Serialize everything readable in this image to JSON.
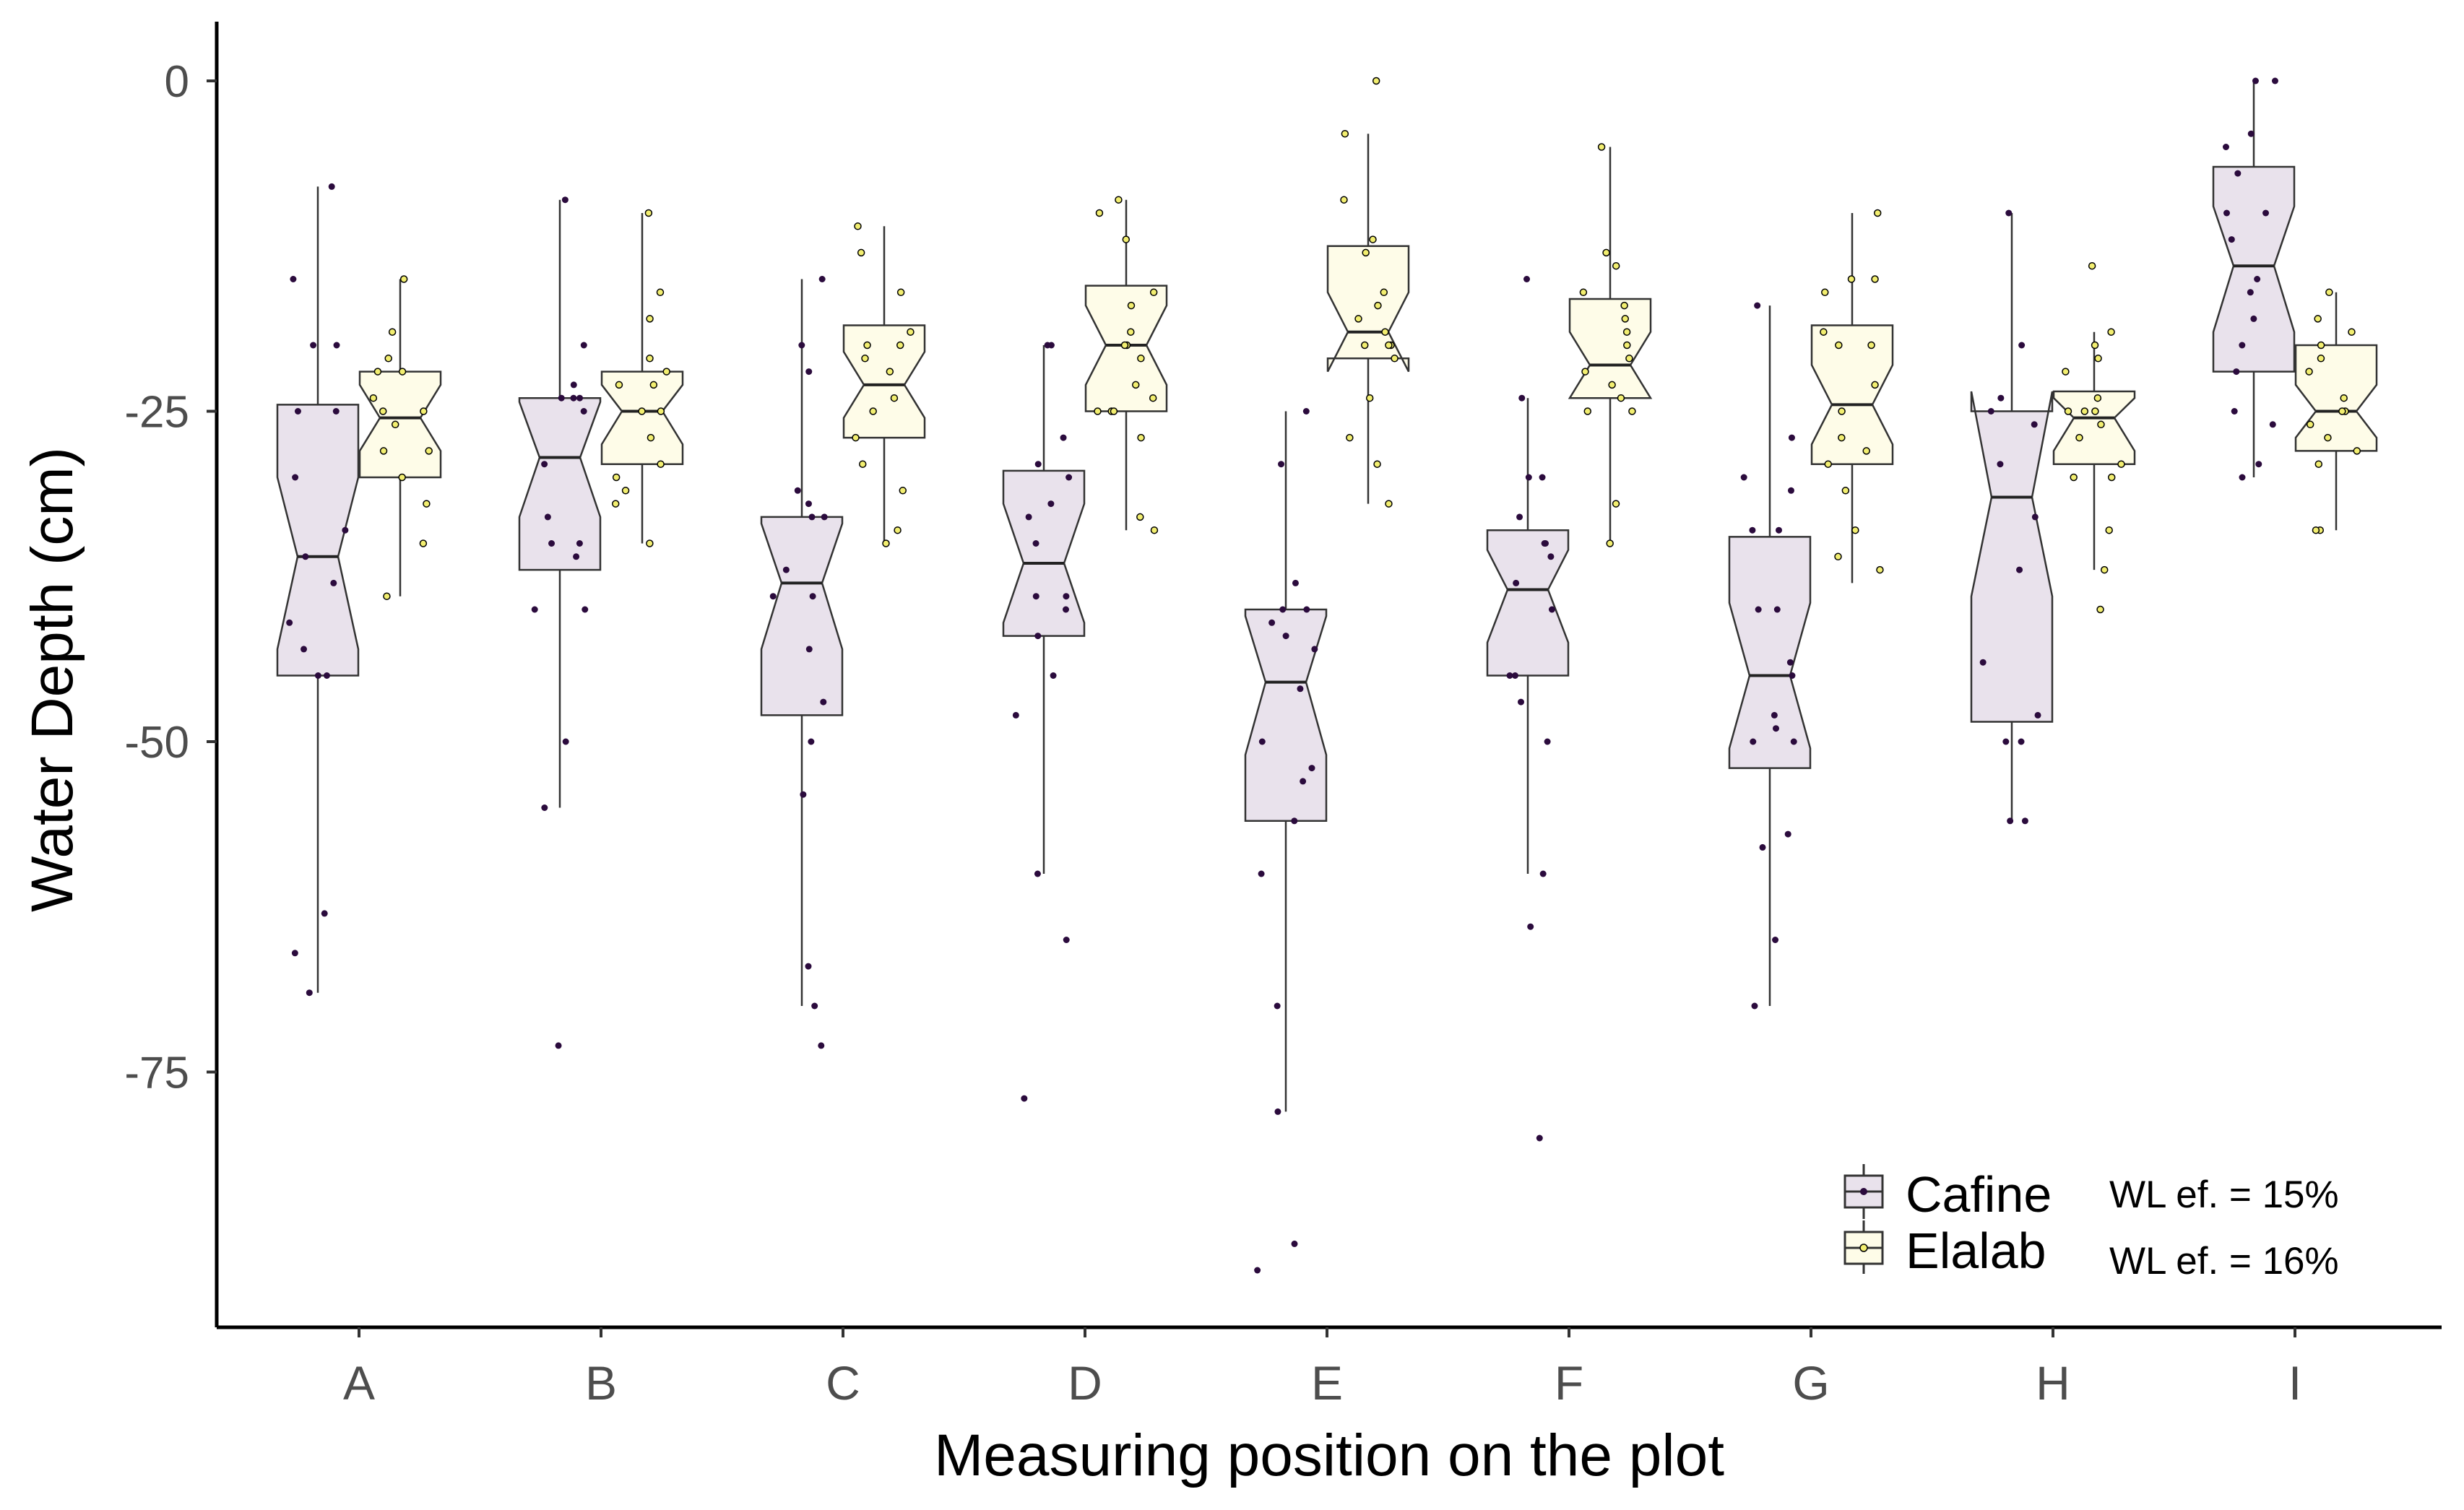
{
  "chart_data": {
    "type": "boxplot",
    "title": "",
    "xlabel": "Measuring position on the plot",
    "ylabel": "Water Depth (cm)",
    "ylim": [
      -95,
      4
    ],
    "yticks": [
      0,
      -25,
      -50,
      -75
    ],
    "ytick_labels": [
      "0",
      "-25",
      "-50",
      "-75"
    ],
    "categories": [
      "A",
      "B",
      "C",
      "D",
      "E",
      "F",
      "G",
      "H",
      "I"
    ],
    "notched": true,
    "legend": {
      "position": "bottom-right",
      "entries": [
        {
          "name": "Cafine",
          "annotation": "WL ef. = 15%"
        },
        {
          "name": "Elalab",
          "annotation": "WL ef. = 16%"
        }
      ]
    },
    "series": [
      {
        "name": "Cafine",
        "fill": "#e9e2ec",
        "point_color": "#2b0b3d",
        "boxes": [
          {
            "category": "A",
            "whisker_low": -69,
            "q1": -45,
            "median": -36,
            "q3": -24.5,
            "whisker_high": -8,
            "notch_low": -43,
            "notch_high": -30
          },
          {
            "category": "B",
            "whisker_low": -55,
            "q1": -37,
            "median": -28.5,
            "q3": -24,
            "whisker_high": -9,
            "notch_low": -33,
            "notch_high": -24.3
          },
          {
            "category": "C",
            "whisker_low": -70,
            "q1": -48,
            "median": -38,
            "q3": -33,
            "whisker_high": -15,
            "notch_low": -43,
            "notch_high": -33.5
          },
          {
            "category": "D",
            "whisker_low": -60,
            "q1": -42,
            "median": -36.5,
            "q3": -29.5,
            "whisker_high": -20,
            "notch_low": -41,
            "notch_high": -32
          },
          {
            "category": "E",
            "whisker_low": -78,
            "q1": -56,
            "median": -45.5,
            "q3": -40,
            "whisker_high": -25,
            "notch_low": -51,
            "notch_high": -40.5
          },
          {
            "category": "F",
            "whisker_low": -60,
            "q1": -45,
            "median": -38.5,
            "q3": -34,
            "whisker_high": -24,
            "notch_low": -42.5,
            "notch_high": -35.5
          },
          {
            "category": "G",
            "whisker_low": -70,
            "q1": -52,
            "median": -45,
            "q3": -34.5,
            "whisker_high": -17,
            "notch_low": -50.5,
            "notch_high": -39.5
          },
          {
            "category": "H",
            "whisker_low": -56,
            "q1": -48.5,
            "median": -31.5,
            "q3": -25,
            "whisker_high": -10,
            "notch_low": -39,
            "notch_high": -23.5
          },
          {
            "category": "I",
            "whisker_low": -30,
            "q1": -22,
            "median": -14,
            "q3": -6.5,
            "whisker_high": 0,
            "notch_low": -19,
            "notch_high": -9.5
          }
        ],
        "points": [
          {
            "category": "A",
            "values": [
              -8,
              -15,
              -20,
              -20,
              -25,
              -25,
              -30,
              -34,
              -36,
              -38,
              -41,
              -43,
              -45,
              -45,
              -66,
              -69,
              -63
            ]
          },
          {
            "category": "B",
            "values": [
              -9,
              -20,
              -23,
              -24,
              -24,
              -24,
              -25,
              -29,
              -33,
              -35,
              -35,
              -36,
              -40,
              -40,
              -50,
              -55,
              -73
            ]
          },
          {
            "category": "C",
            "values": [
              -15,
              -20,
              -22,
              -31,
              -32,
              -33,
              -33,
              -37,
              -39,
              -39,
              -43,
              -47,
              -50,
              -54,
              -67,
              -70,
              -73
            ]
          },
          {
            "category": "D",
            "values": [
              -20,
              -20,
              -27,
              -29,
              -30,
              -32,
              -33,
              -35,
              -39,
              -39,
              -40,
              -42,
              -45,
              -48,
              -60,
              -65,
              -77
            ]
          },
          {
            "category": "E",
            "values": [
              -25,
              -29,
              -38,
              -40,
              -40,
              -41,
              -42,
              -43,
              -46,
              -50,
              -52,
              -53,
              -56,
              -60,
              -70,
              -78,
              -88,
              -90
            ]
          },
          {
            "category": "F",
            "values": [
              -15,
              -24,
              -30,
              -30,
              -33,
              -35,
              -35,
              -36,
              -38,
              -40,
              -45,
              -45,
              -47,
              -50,
              -60,
              -64,
              -80
            ]
          },
          {
            "category": "G",
            "values": [
              -17,
              -27,
              -30,
              -31,
              -34,
              -34,
              -40,
              -40,
              -44,
              -45,
              -48,
              -49,
              -50,
              -50,
              -57,
              -58,
              -65,
              -70
            ]
          },
          {
            "category": "H",
            "values": [
              -10,
              -20,
              -24,
              -25,
              -26,
              -29,
              -33,
              -37,
              -44,
              -48,
              -50,
              -50,
              -56,
              -56
            ]
          },
          {
            "category": "I",
            "values": [
              0,
              0,
              -4,
              -5,
              -7,
              -10,
              -10,
              -12,
              -15,
              -16,
              -18,
              -20,
              -22,
              -25,
              -26,
              -29,
              -30
            ]
          }
        ]
      },
      {
        "name": "Elalab",
        "fill": "#fefce8",
        "point_color": "#f2ee70",
        "boxes": [
          {
            "category": "A",
            "whisker_low": -39,
            "q1": -30,
            "median": -25.5,
            "q3": -22,
            "whisker_high": -15,
            "notch_low": -28,
            "notch_high": -23
          },
          {
            "category": "B",
            "whisker_low": -35,
            "q1": -29,
            "median": -25,
            "q3": -22,
            "whisker_high": -10,
            "notch_low": -27.5,
            "notch_high": -23
          },
          {
            "category": "C",
            "whisker_low": -35,
            "q1": -27,
            "median": -23,
            "q3": -18.5,
            "whisker_high": -11,
            "notch_low": -25.5,
            "notch_high": -20.5
          },
          {
            "category": "D",
            "whisker_low": -34,
            "q1": -25,
            "median": -20,
            "q3": -15.5,
            "whisker_high": -9,
            "notch_low": -23,
            "notch_high": -17
          },
          {
            "category": "E",
            "whisker_low": -32,
            "q1": -21,
            "median": -19,
            "q3": -12.5,
            "whisker_high": -4,
            "notch_low": -22,
            "notch_high": -16
          },
          {
            "category": "F",
            "whisker_low": -35,
            "q1": -24,
            "median": -21.5,
            "q3": -16.5,
            "whisker_high": -5,
            "notch_low": -24,
            "notch_high": -19
          },
          {
            "category": "G",
            "whisker_low": -38,
            "q1": -29,
            "median": -24.5,
            "q3": -18.5,
            "whisker_high": -10,
            "notch_low": -27.5,
            "notch_high": -21.5
          },
          {
            "category": "H",
            "whisker_low": -37,
            "q1": -29,
            "median": -25.5,
            "q3": -23.5,
            "whisker_high": -19,
            "notch_low": -28,
            "notch_high": -24
          },
          {
            "category": "I",
            "whisker_low": -34,
            "q1": -28,
            "median": -25,
            "q3": -20,
            "whisker_high": -16,
            "notch_low": -27,
            "notch_high": -23
          }
        ],
        "points": [
          {
            "category": "A",
            "values": [
              -15,
              -19,
              -21,
              -22,
              -22,
              -24,
              -25,
              -25,
              -26,
              -28,
              -28,
              -30,
              -32,
              -35,
              -39
            ]
          },
          {
            "category": "B",
            "values": [
              -10,
              -16,
              -18,
              -21,
              -22,
              -23,
              -23,
              -25,
              -25,
              -27,
              -29,
              -30,
              -31,
              -32,
              -35
            ]
          },
          {
            "category": "C",
            "values": [
              -11,
              -13,
              -16,
              -19,
              -20,
              -20,
              -21,
              -22,
              -24,
              -25,
              -27,
              -29,
              -31,
              -34,
              -35
            ]
          },
          {
            "category": "D",
            "values": [
              -9,
              -10,
              -12,
              -16,
              -17,
              -19,
              -20,
              -20,
              -21,
              -23,
              -24,
              -25,
              -25,
              -25,
              -27,
              -33,
              -34
            ]
          },
          {
            "category": "E",
            "values": [
              0,
              -4,
              -9,
              -12,
              -13,
              -16,
              -17,
              -18,
              -19,
              -20,
              -20,
              -20,
              -21,
              -24,
              -27,
              -29,
              -32
            ]
          },
          {
            "category": "F",
            "values": [
              -5,
              -13,
              -14,
              -16,
              -17,
              -18,
              -19,
              -20,
              -21,
              -22,
              -23,
              -24,
              -25,
              -25,
              -32,
              -35
            ]
          },
          {
            "category": "G",
            "values": [
              -10,
              -15,
              -15,
              -16,
              -19,
              -20,
              -20,
              -23,
              -25,
              -27,
              -28,
              -29,
              -31,
              -34,
              -36,
              -37
            ]
          },
          {
            "category": "H",
            "values": [
              -14,
              -19,
              -20,
              -21,
              -22,
              -24,
              -25,
              -25,
              -25,
              -26,
              -27,
              -29,
              -30,
              -30,
              -34,
              -37,
              -40
            ]
          },
          {
            "category": "I",
            "values": [
              -16,
              -18,
              -19,
              -20,
              -21,
              -22,
              -24,
              -25,
              -25,
              -26,
              -27,
              -28,
              -29,
              -34,
              -34
            ]
          }
        ]
      }
    ]
  }
}
